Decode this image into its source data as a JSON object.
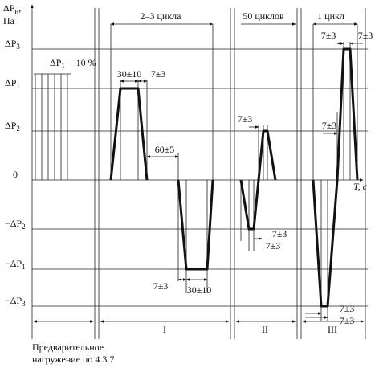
{
  "y_axis": {
    "symbol": "ΔP",
    "subscript": "н",
    "unit": "Па"
  },
  "levels": [
    {
      "label": "ΔP",
      "sub": "3"
    },
    {
      "label": "ΔP",
      "sub": "1"
    },
    {
      "label": "ΔP",
      "sub": "2"
    },
    {
      "label": "0"
    },
    {
      "label": "−ΔP",
      "sub": "2"
    },
    {
      "label": "−ΔP",
      "sub": "1"
    },
    {
      "label": "−ΔP",
      "sub": "3"
    }
  ],
  "preload": {
    "label": "ΔP",
    "sub": "1",
    "suffix": "+ 10 %",
    "caption": [
      "Предварительное",
      "нагружение по 4.3.7"
    ]
  },
  "x_axis": {
    "label": "T, с"
  },
  "sections": [
    {
      "cycles": "2–3 цикла",
      "name": "I",
      "times": [
        "30±10",
        "7±3",
        "60±5",
        "7±3",
        "30±10"
      ]
    },
    {
      "cycles": "50 циклов",
      "name": "II",
      "times": [
        "7±3",
        "7±3",
        "7±3"
      ]
    },
    {
      "cycles": "1 цикл",
      "name": "III",
      "times": [
        "7±3",
        "7±3",
        "7±3",
        "7±3",
        "7±3"
      ]
    }
  ]
}
